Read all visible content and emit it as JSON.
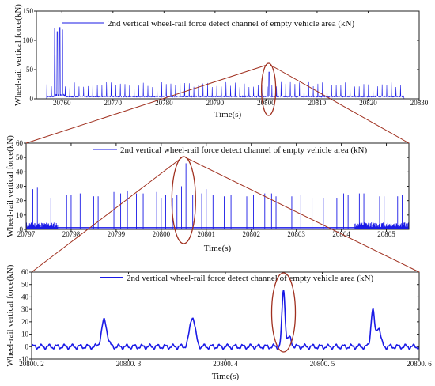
{
  "colors": {
    "series": "#1a1ae6",
    "zoom_marker": "#a0301f",
    "axis": "#222222"
  },
  "chart_data": [
    {
      "type": "line",
      "ylabel": "Wheel-rail vertical force(kN)",
      "xlabel": "Time(s)",
      "legend": "2nd vertical wheel-rail force detect channel of empty vehicle area (kN)",
      "legend_position": "top-right",
      "xlim": [
        20755,
        20830
      ],
      "ylim": [
        0,
        150
      ],
      "xticks": [
        "20760",
        "20770",
        "20780",
        "20790",
        "20800",
        "20810",
        "20820",
        "20830"
      ],
      "yticks": [
        "0",
        "50",
        "100",
        "150"
      ],
      "highlight_x": 20800.5,
      "series": [
        {
          "name": "2nd vertical wheel-rail force detect channel of empty vehicle area (kN)",
          "signal": {
            "start": 20757,
            "end": 20827,
            "period": 0.9,
            "peak": 25,
            "base": 3,
            "burst": {
              "start": 20758.5,
              "end": 20760.5,
              "peaks": [
                120,
                115,
                122,
                118
              ]
            },
            "notable_peak": {
              "x": 20800.6,
              "y": 46
            }
          }
        }
      ]
    },
    {
      "type": "line",
      "ylabel": "Wheel-rail vertical force(kN)",
      "xlabel": "Time(s)",
      "legend": "2nd vertical wheel-rail force detect channel of empty vehicle area (kN)",
      "legend_position": "top-right",
      "xlim": [
        20797,
        20805.5
      ],
      "ylim": [
        0,
        60
      ],
      "xticks": [
        "20797",
        "20798",
        "20799",
        "20800",
        "20801",
        "20802",
        "20803",
        "20804",
        "20805"
      ],
      "yticks": [
        "0",
        "10",
        "20",
        "30",
        "40",
        "50",
        "60"
      ],
      "highlight_x": 20800.5,
      "series": [
        {
          "name": "2nd vertical wheel-rail force detect channel of empty vehicle area (kN)",
          "peaks": [
            {
              "x": 20797.15,
              "y": 28
            },
            {
              "x": 20797.25,
              "y": 29
            },
            {
              "x": 20797.55,
              "y": 22
            },
            {
              "x": 20797.9,
              "y": 24
            },
            {
              "x": 20798.0,
              "y": 24
            },
            {
              "x": 20798.2,
              "y": 25
            },
            {
              "x": 20798.5,
              "y": 23
            },
            {
              "x": 20798.6,
              "y": 23
            },
            {
              "x": 20798.95,
              "y": 26
            },
            {
              "x": 20799.1,
              "y": 25
            },
            {
              "x": 20799.25,
              "y": 27
            },
            {
              "x": 20799.45,
              "y": 25
            },
            {
              "x": 20799.6,
              "y": 25
            },
            {
              "x": 20799.9,
              "y": 26
            },
            {
              "x": 20800.0,
              "y": 22
            },
            {
              "x": 20800.1,
              "y": 24
            },
            {
              "x": 20800.25,
              "y": 22
            },
            {
              "x": 20800.35,
              "y": 24
            },
            {
              "x": 20800.45,
              "y": 30
            },
            {
              "x": 20800.55,
              "y": 46
            },
            {
              "x": 20800.7,
              "y": 24
            },
            {
              "x": 20800.9,
              "y": 25
            },
            {
              "x": 20801.0,
              "y": 28
            },
            {
              "x": 20801.15,
              "y": 24
            },
            {
              "x": 20801.4,
              "y": 23
            },
            {
              "x": 20801.55,
              "y": 24
            },
            {
              "x": 20801.9,
              "y": 23
            },
            {
              "x": 20802.05,
              "y": 24
            },
            {
              "x": 20802.3,
              "y": 25
            },
            {
              "x": 20802.45,
              "y": 25
            },
            {
              "x": 20802.55,
              "y": 23
            },
            {
              "x": 20802.9,
              "y": 23
            },
            {
              "x": 20803.1,
              "y": 24
            },
            {
              "x": 20803.35,
              "y": 22
            },
            {
              "x": 20803.6,
              "y": 22
            },
            {
              "x": 20803.9,
              "y": 22
            },
            {
              "x": 20804.05,
              "y": 25
            },
            {
              "x": 20804.15,
              "y": 24
            },
            {
              "x": 20804.4,
              "y": 25
            },
            {
              "x": 20804.5,
              "y": 25
            },
            {
              "x": 20804.85,
              "y": 23
            },
            {
              "x": 20804.95,
              "y": 23
            },
            {
              "x": 20805.25,
              "y": 23
            },
            {
              "x": 20805.35,
              "y": 24
            }
          ],
          "baseline_bands": [
            {
              "x0": 20797.0,
              "x1": 20797.7,
              "peak": 5
            },
            {
              "x0": 20804.3,
              "x1": 20805.5,
              "peak": 5
            }
          ]
        }
      ]
    },
    {
      "type": "line",
      "ylabel": "Wheel-rail vertical force(kN)",
      "xlabel": "Time(s)",
      "legend": "2nd vertical wheel-rail force detect channel of empty vehicle area (kN)",
      "legend_position": "top-right",
      "xlim": [
        20800.2,
        20800.6
      ],
      "ylim": [
        -10,
        60
      ],
      "xticks": [
        "20800. 2",
        "20800. 3",
        "20800. 4",
        "20800. 5",
        "20800. 6"
      ],
      "yticks": [
        "-10",
        "0",
        "10",
        "20",
        "30",
        "40",
        "50",
        "60"
      ],
      "highlight_x": 20800.46,
      "series": [
        {
          "name": "2nd vertical wheel-rail force detect channel of empty vehicle area (kN)",
          "peaks": [
            {
              "x": 20800.275,
              "y": 21,
              "width": 0.004
            },
            {
              "x": 20800.366,
              "y": 24,
              "width": 0.004
            },
            {
              "x": 20800.46,
              "y": 46,
              "width": 0.0022
            },
            {
              "x": 20800.466,
              "y": 7,
              "width": 0.003
            },
            {
              "x": 20800.552,
              "y": 30,
              "width": 0.0025
            },
            {
              "x": 20800.558,
              "y": 16,
              "width": 0.003
            }
          ],
          "ripple": {
            "amplitude": 1.5,
            "period": 0.008,
            "baseline": 0
          }
        }
      ]
    }
  ]
}
